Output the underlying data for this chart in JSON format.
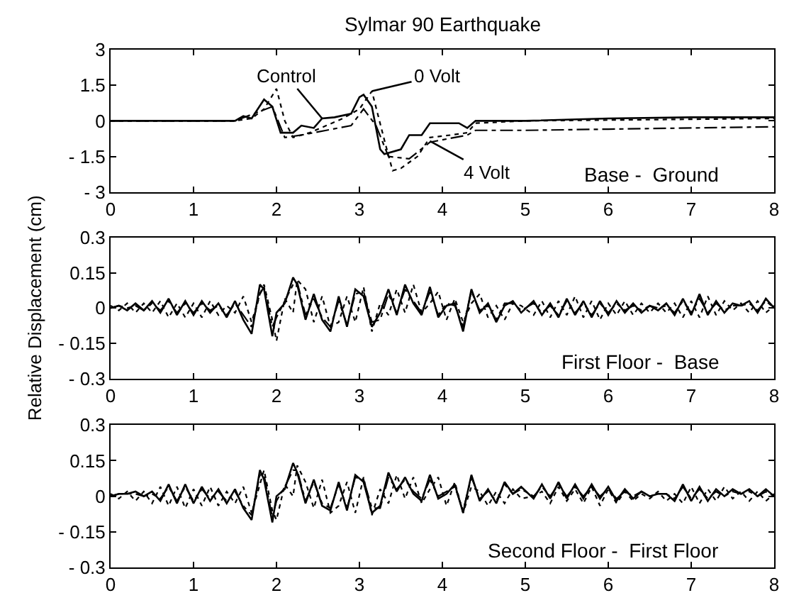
{
  "chart_data": [
    {
      "type": "line",
      "title": "Sylmar 90 Earthquake",
      "xlim": [
        0,
        8
      ],
      "xticks": [
        0,
        1,
        2,
        3,
        4,
        5,
        6,
        7,
        8
      ],
      "ylim": [
        -3,
        3
      ],
      "yticks": [
        -3,
        -1.5,
        0,
        1.5,
        3
      ],
      "grid": false,
      "marker": "none",
      "annotations": [
        {
          "text": "Control",
          "x": 2.55,
          "y": 0.1
        },
        {
          "text": "0 Volt",
          "x": 3.15,
          "y": 1.25
        },
        {
          "text": "4 Volt",
          "x": 3.85,
          "y": -0.85
        },
        "Base -  Ground"
      ],
      "series": [
        {
          "color": "#000000",
          "line_style": "solid",
          "x": [
            0,
            1.5,
            1.6,
            1.7,
            1.85,
            1.95,
            2.05,
            2.2,
            2.3,
            2.45,
            2.55,
            2.7,
            2.9,
            3.0,
            3.05,
            3.15,
            3.25,
            3.3,
            3.5,
            3.6,
            3.75,
            3.85,
            4.0,
            4.2,
            4.3,
            4.4,
            5,
            6,
            7,
            8
          ],
          "values": [
            0,
            0,
            0.2,
            0.1,
            0.9,
            0.6,
            -0.5,
            -0.5,
            -0.2,
            -0.3,
            0.1,
            0.15,
            0.3,
            1.0,
            1.1,
            0.6,
            -1.2,
            -1.4,
            -1.2,
            -0.6,
            -0.6,
            -0.1,
            -0.1,
            -0.1,
            -0.3,
            0.0,
            0.0,
            0.1,
            0.15,
            0.15
          ]
        },
        {
          "color": "#000000",
          "line_style": "dotted",
          "x": [
            0,
            1.5,
            1.7,
            1.85,
            2.0,
            2.1,
            2.2,
            2.4,
            2.6,
            2.8,
            3.0,
            3.15,
            3.3,
            3.4,
            3.5,
            3.7,
            3.85,
            4.1,
            4.3,
            4.4,
            5,
            8
          ],
          "values": [
            0,
            0,
            0.1,
            0.5,
            1.35,
            0.0,
            -0.7,
            -0.5,
            -0.2,
            0.1,
            0.5,
            1.25,
            -0.8,
            -2.1,
            -2.0,
            -1.5,
            -0.7,
            -0.6,
            -0.5,
            -0.1,
            0.0,
            0.1
          ]
        },
        {
          "color": "#000000",
          "line_style": "dashed",
          "x": [
            0,
            1.5,
            1.8,
            1.95,
            2.1,
            2.3,
            2.6,
            2.9,
            3.05,
            3.2,
            3.35,
            3.6,
            3.85,
            4.0,
            4.3,
            4.4,
            5,
            6,
            7,
            8
          ],
          "values": [
            0,
            0,
            0.4,
            0.6,
            -0.7,
            -0.6,
            -0.4,
            -0.2,
            0.5,
            -0.2,
            -1.5,
            -1.6,
            -0.9,
            -0.8,
            -0.6,
            -0.4,
            -0.4,
            -0.35,
            -0.3,
            -0.25
          ]
        }
      ]
    },
    {
      "type": "line",
      "ylabel": "Relative Displacement (cm)",
      "xlim": [
        0,
        8
      ],
      "xticks": [
        0,
        1,
        2,
        3,
        4,
        5,
        6,
        7,
        8
      ],
      "ylim": [
        -0.3,
        0.3
      ],
      "yticks": [
        -0.3,
        -0.15,
        0,
        0.15,
        0.3
      ],
      "grid": false,
      "marker": "none",
      "annotations": [
        "First Floor -  Base"
      ],
      "x": [
        0,
        0.1,
        0.2,
        0.3,
        0.4,
        0.5,
        0.6,
        0.7,
        0.8,
        0.9,
        1.0,
        1.1,
        1.2,
        1.3,
        1.4,
        1.5,
        1.6,
        1.7,
        1.8,
        1.85,
        1.95,
        2.0,
        2.1,
        2.2,
        2.25,
        2.35,
        2.45,
        2.55,
        2.65,
        2.75,
        2.85,
        2.95,
        3.05,
        3.15,
        3.25,
        3.35,
        3.45,
        3.55,
        3.65,
        3.75,
        3.85,
        3.95,
        4.05,
        4.15,
        4.25,
        4.35,
        4.45,
        4.55,
        4.65,
        4.75,
        4.85,
        4.95,
        5.1,
        5.2,
        5.3,
        5.4,
        5.5,
        5.6,
        5.7,
        5.8,
        5.9,
        6.0,
        6.1,
        6.2,
        6.3,
        6.4,
        6.5,
        6.6,
        6.7,
        6.8,
        6.9,
        7.0,
        7.1,
        7.2,
        7.3,
        7.4,
        7.5,
        7.6,
        7.7,
        7.8,
        7.9,
        8.0
      ],
      "series": [
        {
          "color": "#000000",
          "line_style": "solid",
          "values": [
            0,
            0.01,
            -0.01,
            0.02,
            -0.01,
            0.03,
            -0.02,
            0.04,
            -0.03,
            0.03,
            -0.03,
            0.03,
            -0.02,
            0.02,
            -0.04,
            0.03,
            -0.05,
            -0.11,
            0.1,
            0.08,
            -0.12,
            -0.02,
            0.02,
            0.13,
            0.1,
            -0.05,
            0.06,
            -0.05,
            -0.1,
            0.05,
            -0.08,
            0.08,
            0.05,
            -0.08,
            -0.02,
            0.08,
            -0.03,
            0.1,
            0.02,
            -0.03,
            0.09,
            -0.04,
            0.01,
            0.02,
            -0.1,
            0.08,
            -0.02,
            0.02,
            -0.06,
            0.01,
            0.03,
            -0.02,
            0.03,
            -0.03,
            0.02,
            -0.04,
            0.04,
            -0.03,
            0.03,
            -0.04,
            0.03,
            -0.03,
            0.03,
            -0.02,
            0.02,
            -0.02,
            0.01,
            -0.01,
            0.02,
            -0.03,
            0.04,
            -0.03,
            0.06,
            -0.03,
            0.03,
            -0.02,
            0.02,
            0.01,
            0.03,
            -0.02,
            0.04,
            0.0
          ]
        },
        {
          "color": "#000000",
          "line_style": "dotted",
          "values": [
            0.01,
            -0.01,
            0.02,
            -0.02,
            0.02,
            -0.02,
            0.03,
            -0.04,
            0.02,
            -0.04,
            0.02,
            -0.04,
            0.03,
            -0.03,
            0.01,
            -0.02,
            0.05,
            -0.06,
            0.06,
            0.1,
            -0.05,
            -0.14,
            0.04,
            -0.02,
            0.12,
            0.08,
            -0.06,
            0.05,
            -0.08,
            -0.06,
            0.05,
            -0.06,
            0.09,
            -0.1,
            0.02,
            -0.03,
            0.08,
            -0.02,
            0.1,
            -0.02,
            0.02,
            0.07,
            -0.05,
            0.04,
            -0.06,
            0.02,
            0.06,
            -0.04,
            0.01,
            -0.05,
            0.02,
            0.01,
            -0.03,
            0.03,
            -0.04,
            0.03,
            -0.03,
            0.05,
            -0.04,
            0.03,
            -0.05,
            0.02,
            -0.03,
            0.03,
            -0.03,
            0.02,
            -0.02,
            0.02,
            -0.02,
            0.02,
            -0.04,
            0.03,
            -0.04,
            0.05,
            -0.03,
            0.03,
            -0.01,
            0.02,
            -0.02,
            0.03,
            -0.02,
            0.01
          ]
        },
        {
          "color": "#000000",
          "line_style": "dashed",
          "values": [
            0,
            0.01,
            0,
            0.01,
            -0.01,
            0.02,
            -0.01,
            0.03,
            -0.02,
            0.02,
            -0.02,
            0.02,
            -0.01,
            0.01,
            -0.03,
            0.02,
            -0.03,
            -0.08,
            0.06,
            0.09,
            -0.08,
            -0.04,
            0.03,
            0.1,
            0.11,
            -0.03,
            0.04,
            -0.04,
            -0.08,
            0.03,
            -0.07,
            0.06,
            0.07,
            -0.06,
            -0.05,
            0.06,
            -0.02,
            0.08,
            0.03,
            -0.02,
            0.07,
            -0.03,
            0.02,
            0.01,
            -0.08,
            0.07,
            -0.01,
            0.01,
            -0.05,
            0.02,
            0.02,
            -0.01,
            0.02,
            -0.02,
            0.01,
            -0.03,
            0.03,
            -0.02,
            0.02,
            -0.03,
            0.02,
            -0.02,
            0.02,
            -0.01,
            0.01,
            -0.01,
            0.01,
            0,
            0.01,
            -0.02,
            0.03,
            -0.02,
            0.04,
            -0.02,
            0.02,
            -0.01,
            0.01,
            0.01,
            0.02,
            -0.01,
            0.03,
            0.0
          ]
        }
      ]
    },
    {
      "type": "line",
      "xlim": [
        0,
        8
      ],
      "xticks": [
        0,
        1,
        2,
        3,
        4,
        5,
        6,
        7,
        8
      ],
      "ylim": [
        -0.3,
        0.3
      ],
      "yticks": [
        -0.3,
        -0.15,
        0,
        0.15,
        0.3
      ],
      "grid": false,
      "marker": "none",
      "annotations": [
        "Second Floor -  First Floor"
      ],
      "x": [
        0,
        0.1,
        0.2,
        0.3,
        0.4,
        0.5,
        0.6,
        0.7,
        0.8,
        0.9,
        1.0,
        1.1,
        1.2,
        1.3,
        1.4,
        1.5,
        1.6,
        1.7,
        1.8,
        1.85,
        1.95,
        2.0,
        2.1,
        2.2,
        2.25,
        2.35,
        2.45,
        2.55,
        2.65,
        2.75,
        2.85,
        2.95,
        3.05,
        3.15,
        3.25,
        3.35,
        3.45,
        3.55,
        3.65,
        3.75,
        3.85,
        3.95,
        4.05,
        4.15,
        4.25,
        4.35,
        4.45,
        4.55,
        4.65,
        4.75,
        4.85,
        4.95,
        5.1,
        5.2,
        5.3,
        5.4,
        5.5,
        5.6,
        5.7,
        5.8,
        5.9,
        6.0,
        6.1,
        6.2,
        6.3,
        6.4,
        6.5,
        6.6,
        6.7,
        6.8,
        6.9,
        7.0,
        7.1,
        7.2,
        7.3,
        7.4,
        7.5,
        7.6,
        7.7,
        7.8,
        7.9,
        8.0
      ],
      "series": [
        {
          "color": "#000000",
          "line_style": "solid",
          "values": [
            0,
            0.01,
            0.01,
            0.02,
            0.0,
            0.02,
            -0.02,
            0.05,
            -0.03,
            0.05,
            -0.03,
            0.04,
            -0.02,
            0.03,
            -0.03,
            0.03,
            -0.05,
            -0.1,
            0.11,
            0.07,
            -0.11,
            0.0,
            0.03,
            0.14,
            0.1,
            -0.03,
            0.07,
            -0.04,
            -0.06,
            0.06,
            -0.06,
            0.09,
            0.06,
            -0.07,
            -0.04,
            0.1,
            0.02,
            0.08,
            0.01,
            -0.02,
            0.09,
            -0.01,
            0.01,
            0.05,
            -0.07,
            0.09,
            -0.02,
            0.03,
            -0.03,
            0.06,
            0.01,
            0.04,
            -0.01,
            0.05,
            -0.01,
            0.06,
            -0.01,
            0.05,
            -0.01,
            0.05,
            -0.01,
            0.04,
            -0.02,
            0.03,
            -0.01,
            0.02,
            0.0,
            0.01,
            0.01,
            -0.02,
            0.05,
            -0.02,
            0.04,
            -0.02,
            0.03,
            0.0,
            0.03,
            0.01,
            0.03,
            0.0,
            0.03,
            0.0
          ]
        },
        {
          "color": "#000000",
          "line_style": "dotted",
          "values": [
            0.01,
            -0.01,
            0.02,
            -0.02,
            0.02,
            -0.03,
            0.04,
            -0.04,
            0.04,
            -0.05,
            0.03,
            -0.04,
            0.04,
            -0.04,
            0.02,
            -0.03,
            0.04,
            -0.07,
            0.05,
            0.11,
            -0.06,
            -0.1,
            0.05,
            0.0,
            0.13,
            0.06,
            -0.05,
            0.07,
            -0.07,
            -0.04,
            0.06,
            -0.07,
            0.08,
            -0.08,
            0.03,
            -0.03,
            0.09,
            -0.01,
            0.08,
            -0.03,
            0.03,
            0.08,
            -0.04,
            0.06,
            -0.07,
            0.04,
            0.02,
            -0.04,
            0.02,
            -0.03,
            0.03,
            -0.01,
            0.0,
            0.02,
            -0.03,
            0.04,
            -0.02,
            0.03,
            -0.03,
            0.04,
            -0.04,
            0.03,
            -0.03,
            0.02,
            -0.02,
            0.01,
            -0.01,
            0.02,
            -0.02,
            0.01,
            -0.03,
            0.04,
            -0.03,
            0.03,
            -0.02,
            0.04,
            -0.01,
            0.02,
            -0.02,
            0.02,
            -0.02,
            0.01
          ]
        },
        {
          "color": "#000000",
          "line_style": "dashed",
          "values": [
            0,
            0.01,
            0.01,
            0.01,
            0,
            0.01,
            -0.01,
            0.04,
            -0.02,
            0.04,
            -0.02,
            0.03,
            -0.01,
            0.02,
            -0.02,
            0.02,
            -0.04,
            -0.08,
            0.09,
            0.09,
            -0.09,
            -0.02,
            0.04,
            0.11,
            0.11,
            -0.02,
            0.06,
            -0.03,
            -0.05,
            0.05,
            -0.05,
            0.08,
            0.07,
            -0.05,
            -0.05,
            0.08,
            0.03,
            0.07,
            0.02,
            -0.01,
            0.07,
            0.0,
            0.02,
            0.04,
            -0.06,
            0.08,
            -0.01,
            0.02,
            -0.02,
            0.05,
            0.01,
            0.03,
            0.0,
            0.04,
            0.0,
            0.05,
            0.0,
            0.04,
            0.0,
            0.04,
            0.0,
            0.03,
            -0.01,
            0.02,
            0,
            0.02,
            0.0,
            0.01,
            0.01,
            -0.01,
            0.04,
            -0.01,
            0.03,
            -0.01,
            0.02,
            0.0,
            0.02,
            0.01,
            0.02,
            0.0,
            0.02,
            0.0
          ]
        }
      ]
    }
  ]
}
